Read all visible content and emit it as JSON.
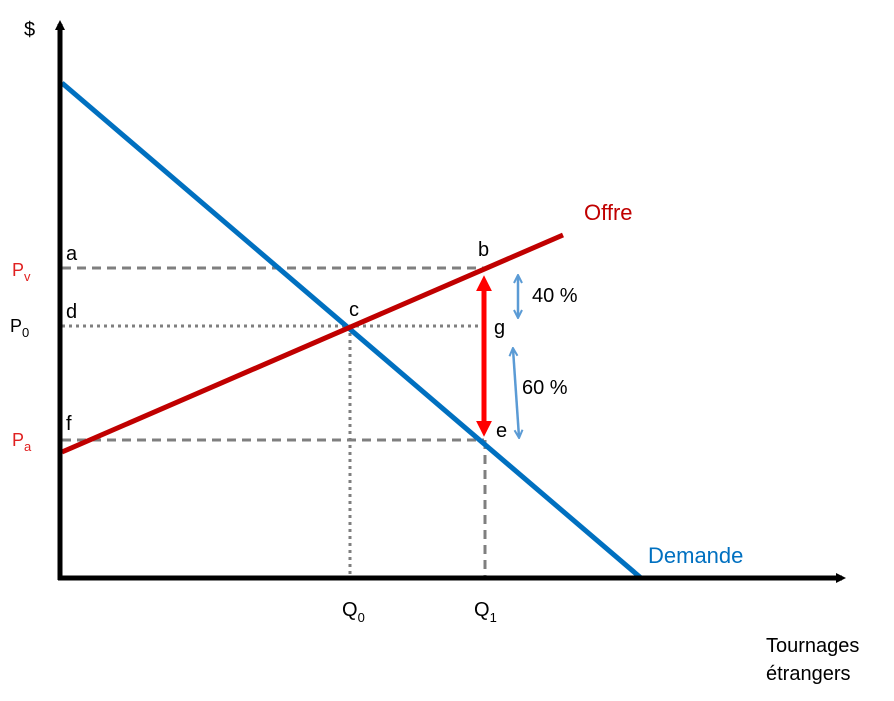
{
  "axes": {
    "y_label": "$",
    "x_label_line1": "Tournages",
    "x_label_line2": "étrangers"
  },
  "curves": {
    "supply_label": "Offre",
    "demand_label": "Demande"
  },
  "prices": {
    "pv_main": "P",
    "pv_sub": "v",
    "p0_main": "P",
    "p0_sub": "0",
    "pa_main": "P",
    "pa_sub": "a"
  },
  "quantities": {
    "q0_main": "Q",
    "q0_sub": "0",
    "q1_main": "Q",
    "q1_sub": "1"
  },
  "points": {
    "a": "a",
    "b": "b",
    "c": "c",
    "d": "d",
    "e": "e",
    "f": "f",
    "g": "g"
  },
  "shares": {
    "upper": "40 %",
    "lower": "60 %"
  },
  "colors": {
    "supply": "#c00000",
    "demand": "#0070c0",
    "price_label": "#e02020",
    "subsidy_arrow": "#ff0000",
    "share_arrow": "#5b9bd5",
    "guide": "#7f7f7f"
  }
}
